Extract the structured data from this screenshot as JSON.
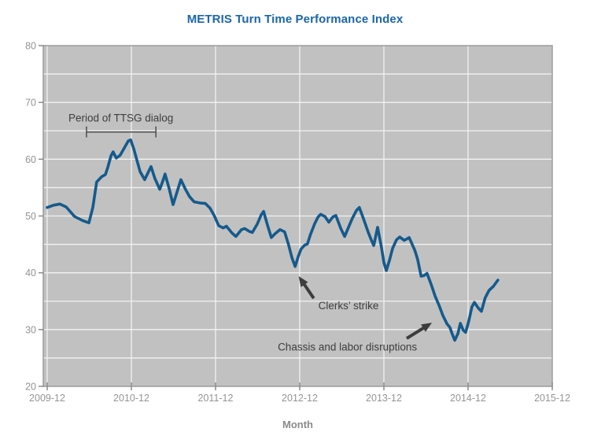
{
  "title": "METRIS Turn Time Performance Index",
  "colors": {
    "title": "#1a66ab",
    "line": "#155a8c",
    "plot_bg": "#c1c1c1",
    "plot_border": "#9b9b9b",
    "grid": "#f2f2f2",
    "tick": "#8b8b8b",
    "tick_label": "#949494",
    "axis_title": "#8a8a8a",
    "annotation": "#3d3d3d",
    "bracket": "#4d4d4d",
    "background": "#ffffff"
  },
  "chart_data": {
    "type": "line",
    "title": "METRIS Turn Time Performance Index",
    "xlabel": "Month",
    "ylabel": "",
    "ylim": [
      20,
      80
    ],
    "y_ticks": [
      20,
      30,
      40,
      50,
      60,
      70,
      80
    ],
    "y_minor_grid_step": 5,
    "xlim_months": [
      -0.56,
      72
    ],
    "x_tick_months": [
      0,
      12,
      24,
      36,
      48,
      60,
      72
    ],
    "x_tick_labels": [
      "2009-12",
      "2010-12",
      "2011-12",
      "2012-12",
      "2013-12",
      "2014-12",
      "2015-12"
    ],
    "grid": true,
    "legend": "none",
    "series": [
      {
        "name": "METRIS Turn Time Performance Index",
        "x_unit": "months since 2009-12",
        "points": [
          [
            0,
            51.5
          ],
          [
            0.9,
            51.9
          ],
          [
            1.8,
            52.1
          ],
          [
            2.7,
            51.6
          ],
          [
            3.9,
            49.9
          ],
          [
            5.05,
            49.2
          ],
          [
            5.95,
            48.8
          ],
          [
            6.5,
            51.5
          ],
          [
            7.05,
            56.0
          ],
          [
            7.75,
            56.9
          ],
          [
            8.3,
            57.3
          ],
          [
            8.65,
            58.6
          ],
          [
            9.1,
            60.6
          ],
          [
            9.4,
            61.3
          ],
          [
            9.85,
            60.2
          ],
          [
            10.4,
            60.7
          ],
          [
            11.0,
            62.0
          ],
          [
            11.55,
            63.2
          ],
          [
            11.9,
            63.4
          ],
          [
            12.35,
            61.8
          ],
          [
            12.8,
            59.8
          ],
          [
            13.25,
            57.8
          ],
          [
            13.9,
            56.4
          ],
          [
            14.45,
            57.8
          ],
          [
            14.8,
            58.7
          ],
          [
            15.35,
            56.6
          ],
          [
            16.05,
            54.7
          ],
          [
            16.5,
            56.2
          ],
          [
            16.8,
            57.4
          ],
          [
            17.4,
            54.8
          ],
          [
            17.95,
            52.0
          ],
          [
            18.5,
            54.2
          ],
          [
            19.05,
            56.4
          ],
          [
            19.75,
            54.6
          ],
          [
            20.3,
            53.4
          ],
          [
            20.95,
            52.5
          ],
          [
            21.75,
            52.3
          ],
          [
            22.55,
            52.2
          ],
          [
            23.2,
            51.4
          ],
          [
            23.8,
            50.1
          ],
          [
            24.45,
            48.3
          ],
          [
            25.1,
            47.9
          ],
          [
            25.55,
            48.2
          ],
          [
            26.35,
            47.0
          ],
          [
            26.9,
            46.4
          ],
          [
            27.7,
            47.6
          ],
          [
            28.15,
            47.8
          ],
          [
            28.8,
            47.3
          ],
          [
            29.25,
            47.1
          ],
          [
            29.95,
            48.6
          ],
          [
            30.5,
            50.2
          ],
          [
            30.85,
            50.8
          ],
          [
            31.4,
            48.4
          ],
          [
            31.95,
            46.2
          ],
          [
            32.5,
            46.9
          ],
          [
            33.2,
            47.6
          ],
          [
            33.85,
            47.2
          ],
          [
            34.4,
            45.0
          ],
          [
            34.9,
            42.6
          ],
          [
            35.35,
            41.1
          ],
          [
            35.8,
            42.9
          ],
          [
            36.2,
            44.2
          ],
          [
            36.65,
            44.8
          ],
          [
            37.1,
            45.1
          ],
          [
            37.55,
            46.8
          ],
          [
            38.15,
            48.7
          ],
          [
            38.6,
            49.8
          ],
          [
            39.0,
            50.3
          ],
          [
            39.6,
            49.9
          ],
          [
            40.15,
            48.9
          ],
          [
            40.7,
            49.8
          ],
          [
            41.15,
            50.1
          ],
          [
            41.85,
            47.8
          ],
          [
            42.4,
            46.4
          ],
          [
            42.95,
            48.0
          ],
          [
            43.5,
            49.6
          ],
          [
            44.1,
            51.0
          ],
          [
            44.5,
            51.5
          ],
          [
            45.1,
            49.5
          ],
          [
            45.75,
            47.2
          ],
          [
            46.2,
            45.8
          ],
          [
            46.55,
            44.8
          ],
          [
            47.1,
            48.0
          ],
          [
            47.65,
            44.5
          ],
          [
            48.0,
            41.8
          ],
          [
            48.35,
            40.4
          ],
          [
            48.8,
            42.2
          ],
          [
            49.25,
            44.3
          ],
          [
            49.8,
            45.8
          ],
          [
            50.25,
            46.3
          ],
          [
            50.9,
            45.7
          ],
          [
            51.6,
            46.2
          ],
          [
            52.4,
            44.0
          ],
          [
            52.8,
            42.4
          ],
          [
            53.3,
            39.4
          ],
          [
            53.7,
            39.5
          ],
          [
            54.15,
            39.9
          ],
          [
            54.75,
            37.9
          ],
          [
            55.3,
            35.9
          ],
          [
            55.85,
            34.3
          ],
          [
            56.4,
            32.5
          ],
          [
            57.0,
            31.0
          ],
          [
            57.4,
            30.4
          ],
          [
            57.75,
            29.2
          ],
          [
            58.1,
            28.1
          ],
          [
            58.55,
            29.3
          ],
          [
            58.9,
            31.1
          ],
          [
            59.3,
            29.9
          ],
          [
            59.65,
            29.5
          ],
          [
            60.1,
            31.5
          ],
          [
            60.55,
            34.0
          ],
          [
            60.9,
            34.8
          ],
          [
            61.45,
            33.8
          ],
          [
            61.9,
            33.2
          ],
          [
            62.45,
            35.6
          ],
          [
            63.0,
            36.9
          ],
          [
            63.6,
            37.6
          ],
          [
            64.25,
            38.7
          ]
        ]
      }
    ],
    "annotations": {
      "bracket": {
        "label": "Period of TTSG dialog",
        "x1_month": 5.6,
        "x2_month": 15.5,
        "value": 64.8,
        "label_month": 10.5,
        "label_value": 66.6
      },
      "clerks_strike": {
        "label": "Clerks’ strike",
        "label_month": 42.95,
        "label_value": 33.6,
        "arrow_tail": [
          38.0,
          35.5
        ],
        "arrow_tip": [
          35.85,
          39.4
        ]
      },
      "chassis": {
        "label": "Chassis and labor disruptions",
        "label_month": 42.8,
        "label_value": 26.3,
        "arrow_tail": [
          51.25,
          28.45
        ],
        "arrow_tip": [
          54.85,
          31.2
        ]
      }
    }
  }
}
